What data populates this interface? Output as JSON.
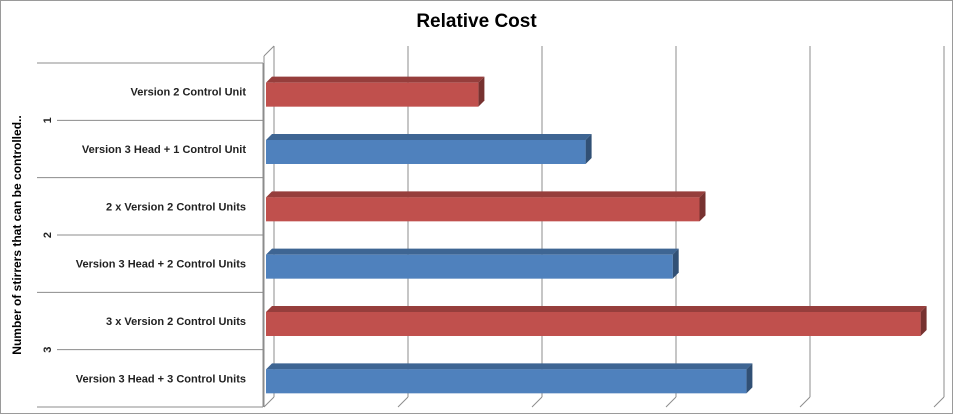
{
  "chart_data": {
    "type": "bar",
    "orientation": "horizontal",
    "three_d": true,
    "title": "Relative Cost",
    "ylabel": "Number of stirrers that can be controlled..",
    "xlabel": "",
    "grid": true,
    "x_tick_labels_shown": false,
    "xlim": [
      0,
      5
    ],
    "groups": [
      {
        "label": "1",
        "bars": [
          {
            "category": "Version 2 Control Unit",
            "value": 1.6,
            "color": "#c0504d"
          },
          {
            "category": "Version 3 Head + 1 Control Unit",
            "value": 2.4,
            "color": "#4f81bd"
          }
        ]
      },
      {
        "label": "2",
        "bars": [
          {
            "category": "2 x Version 2 Control Units",
            "value": 3.25,
            "color": "#c0504d"
          },
          {
            "category": "Version 3 Head + 2 Control Units",
            "value": 3.05,
            "color": "#4f81bd"
          }
        ]
      },
      {
        "label": "3",
        "bars": [
          {
            "category": "3 x Version 2 Control Units",
            "value": 4.9,
            "color": "#c0504d"
          },
          {
            "category": "Version 3 Head + 3 Control Units",
            "value": 3.6,
            "color": "#4f81bd"
          }
        ]
      }
    ]
  }
}
